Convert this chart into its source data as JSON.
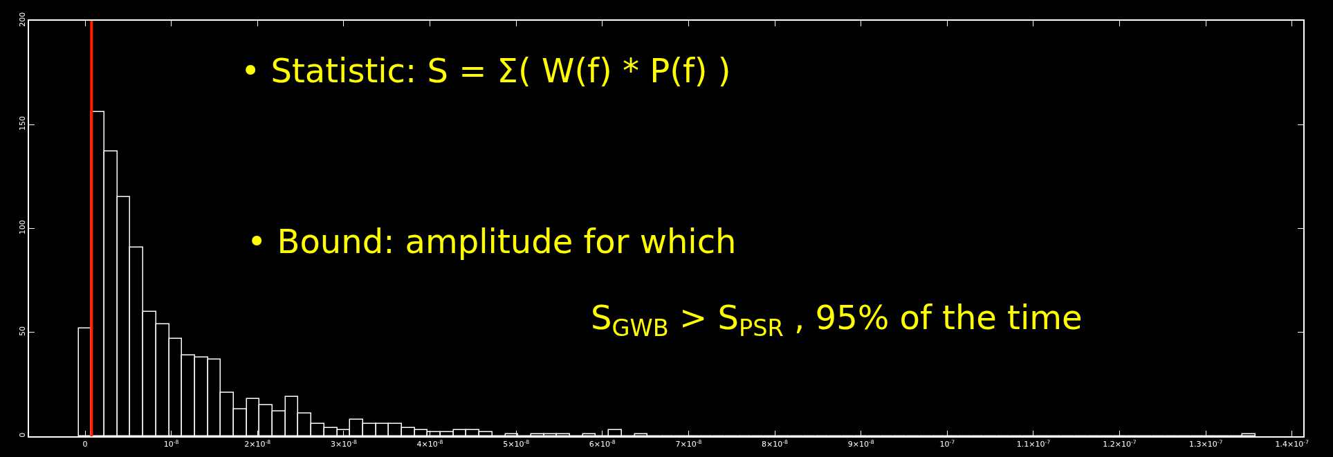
{
  "chart_data": {
    "type": "histogram",
    "bins": [
      -7.5e-10,
      7.5e-10,
      2.25e-09,
      3.75e-09,
      5.25e-09,
      6.75e-09,
      8.25e-09,
      9.75e-09,
      1.125e-08,
      1.275e-08,
      1.425e-08,
      1.575e-08,
      1.725e-08,
      1.875e-08,
      2.025e-08,
      2.175e-08,
      2.325e-08,
      2.475e-08,
      2.625e-08,
      2.775e-08,
      2.925e-08,
      3.075e-08,
      3.225e-08,
      3.375e-08,
      3.525e-08,
      3.675e-08,
      3.825e-08,
      3.975e-08,
      4.125e-08,
      4.275e-08,
      4.425e-08,
      4.575e-08,
      4.725e-08,
      4.875e-08,
      5.025e-08,
      5.175e-08,
      5.325e-08,
      5.475e-08,
      5.625e-08,
      5.775e-08,
      5.925e-08,
      6.075e-08,
      6.225e-08,
      6.375e-08,
      6.525e-08,
      6.675e-08,
      6.825e-08,
      6.975e-08,
      7.125e-08,
      7.275e-08,
      7.425e-08,
      7.575e-08,
      7.725e-08,
      7.875e-08,
      8.025e-08,
      8.175e-08,
      8.325e-08,
      8.475e-08,
      8.625e-08,
      8.775e-08,
      8.925e-08,
      9.075e-08,
      9.225e-08,
      9.375e-08,
      9.525e-08,
      9.675e-08,
      9.825e-08,
      9.975e-08,
      1.0125e-07,
      1.0275e-07,
      1.0425e-07,
      1.0575e-07,
      1.0725e-07,
      1.0875e-07,
      1.1025e-07,
      1.1175e-07,
      1.1325e-07,
      1.1475e-07,
      1.1625e-07,
      1.1775e-07,
      1.1925e-07,
      1.2075e-07,
      1.2225e-07,
      1.2375e-07,
      1.2525e-07,
      1.2675e-07,
      1.2825e-07,
      1.2975e-07,
      1.3125e-07,
      1.3275e-07,
      1.3425e-07,
      1.3575e-07
    ],
    "values": [
      52,
      156,
      137,
      115,
      91,
      60,
      54,
      47,
      39,
      38,
      37,
      21,
      13,
      18,
      15,
      12,
      19,
      11,
      6,
      4,
      3,
      8,
      6,
      6,
      6,
      4,
      3,
      2,
      2,
      3,
      3,
      2,
      0,
      1,
      0,
      1,
      1,
      1,
      0,
      1,
      0,
      3,
      0,
      1,
      0,
      0,
      0,
      0,
      0,
      0,
      0,
      0,
      0,
      0,
      0,
      0,
      0,
      0,
      0,
      0,
      0,
      0,
      0,
      0,
      0,
      0,
      0,
      0,
      0,
      0,
      0,
      0,
      0,
      0,
      0,
      0,
      0,
      0,
      0,
      0,
      0,
      0,
      0,
      0,
      0,
      0,
      0,
      0,
      0,
      0,
      1
    ],
    "color": "#ffffff",
    "xlim": [
      -6.5e-09,
      1.413e-07
    ],
    "xticks": [
      {
        "value": 0,
        "label": "0"
      },
      {
        "value": 1e-08,
        "label": "10$^{-8}$"
      },
      {
        "value": 2e-08,
        "label": "2×10$^{-8}$"
      },
      {
        "value": 3e-08,
        "label": "3×10$^{-8}$"
      },
      {
        "value": 4e-08,
        "label": "4×10$^{-8}$"
      },
      {
        "value": 5e-08,
        "label": "5×10$^{-8}$"
      },
      {
        "value": 6e-08,
        "label": "6×10$^{-8}$"
      },
      {
        "value": 7e-08,
        "label": "7×10$^{-8}$"
      },
      {
        "value": 8e-08,
        "label": "8×10$^{-8}$"
      },
      {
        "value": 9e-08,
        "label": "9×10$^{-8}$"
      },
      {
        "value": 1e-07,
        "label": "10$^{-7}$"
      },
      {
        "value": 1.1e-07,
        "label": "1.1×10$^{-7}$"
      },
      {
        "value": 1.2e-07,
        "label": "1.2×10$^{-7}$"
      },
      {
        "value": 1.3e-07,
        "label": "1.3×10$^{-7}$"
      },
      {
        "value": 1.4e-07,
        "label": "1.4×10$^{-7}$"
      }
    ],
    "ylim": [
      0,
      200
    ],
    "yticks": [
      0,
      50,
      100,
      150,
      200
    ],
    "ref_lines": [
      {
        "axis": "x",
        "value": 7.5e-10,
        "color": "#ff2200"
      }
    ],
    "annotations": [
      "• Statistic: S = Σ( W(f) * P(f) )",
      "• Bound: amplitude for which",
      "S$_{GWB}$ > S$_{PSR}$ , 95% of the time"
    ]
  }
}
